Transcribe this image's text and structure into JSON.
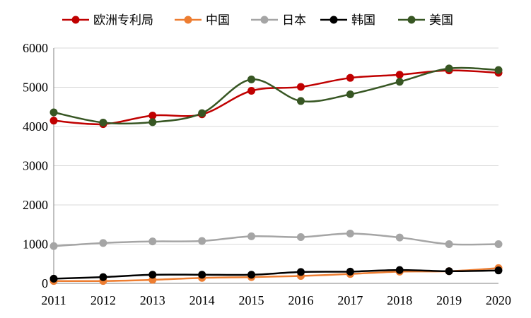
{
  "chart_data": {
    "type": "line",
    "title": "",
    "xlabel": "",
    "ylabel": "",
    "categories": [
      "2011",
      "2012",
      "2013",
      "2014",
      "2015",
      "2016",
      "2017",
      "2018",
      "2019",
      "2020"
    ],
    "yticks": [
      "0",
      "1000",
      "2000",
      "3000",
      "4000",
      "5000",
      "6000"
    ],
    "ylim": [
      0,
      6000
    ],
    "grid": "horizontal",
    "legend_position": "top",
    "series": [
      {
        "name": "欧洲专利局",
        "color": "#c00000",
        "values": [
          4150,
          4060,
          4280,
          4310,
          4910,
          5010,
          5240,
          5320,
          5430,
          5370
        ]
      },
      {
        "name": "中国",
        "color": "#ed7d31",
        "values": [
          60,
          60,
          90,
          140,
          160,
          190,
          240,
          300,
          310,
          390
        ]
      },
      {
        "name": "日本",
        "color": "#a5a5a5",
        "values": [
          950,
          1030,
          1070,
          1080,
          1200,
          1180,
          1270,
          1170,
          1000,
          1000
        ]
      },
      {
        "name": "韩国",
        "color": "#000000",
        "values": [
          120,
          160,
          220,
          220,
          220,
          290,
          300,
          340,
          310,
          330
        ]
      },
      {
        "name": "美国",
        "color": "#375623",
        "values": [
          4360,
          4100,
          4110,
          4340,
          5200,
          4650,
          4820,
          5140,
          5480,
          5440
        ]
      }
    ]
  }
}
